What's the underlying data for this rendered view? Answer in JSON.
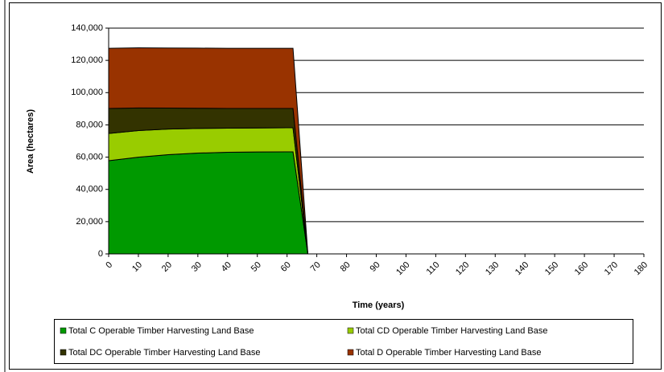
{
  "chart_data": {
    "type": "stacked_area",
    "xlabel": "Time (years)",
    "ylabel": "Area (hectares)",
    "x": [
      0,
      10,
      20,
      30,
      40,
      50,
      60,
      62,
      67,
      180
    ],
    "series": [
      {
        "name": "Total C Operable Timber Harvesting Land Base",
        "color": "#009900",
        "values": [
          57800,
          60000,
          61500,
          62500,
          63000,
          63200,
          63300,
          63300,
          0,
          0
        ]
      },
      {
        "name": "Total CD Operable Timber Harvesting Land Base",
        "color": "#99cc00",
        "values": [
          16900,
          16500,
          15900,
          15300,
          15000,
          14900,
          14900,
          14900,
          0,
          0
        ]
      },
      {
        "name": "Total DC Operable Timber Harvesting Land Base",
        "color": "#333300",
        "values": [
          15500,
          14000,
          13000,
          12500,
          12200,
          12100,
          12000,
          12000,
          0,
          0
        ]
      },
      {
        "name": "Total D Operable Timber Harvesting Land Base",
        "color": "#993300",
        "values": [
          37300,
          37300,
          37300,
          37300,
          37300,
          37300,
          37300,
          37300,
          0,
          0
        ]
      }
    ],
    "xlim": [
      0,
      180
    ],
    "xticks": [
      0,
      10,
      20,
      30,
      40,
      50,
      60,
      70,
      80,
      90,
      100,
      110,
      120,
      130,
      140,
      150,
      160,
      170,
      180
    ],
    "ylim": [
      0,
      140000
    ],
    "yticks": [
      0,
      {
        "value": 20000,
        "label": "20,000"
      },
      {
        "value": 40000,
        "label": "40,000"
      },
      {
        "value": 60000,
        "label": "60,000"
      },
      {
        "value": 80000,
        "label": "80,000"
      },
      {
        "value": 100000,
        "label": "100,000"
      },
      {
        "value": 120000,
        "label": "120,000"
      },
      {
        "value": 140000,
        "label": "140,000"
      }
    ],
    "grid": true
  }
}
